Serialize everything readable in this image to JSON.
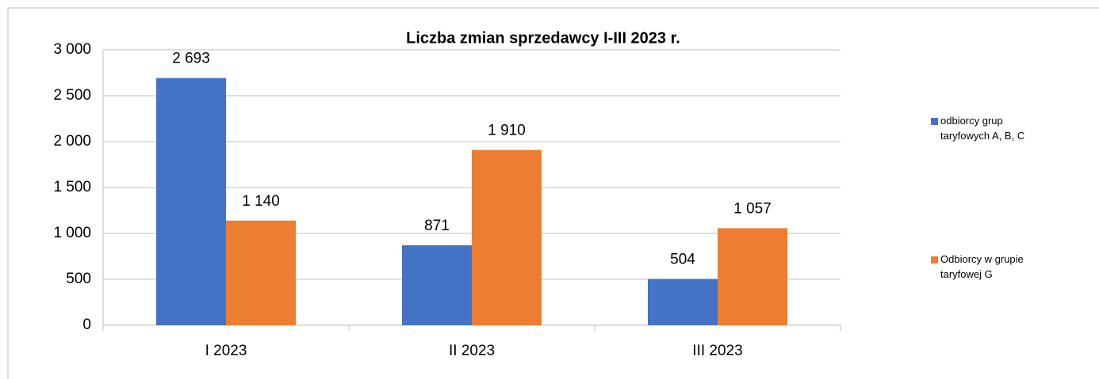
{
  "chart_data": {
    "type": "bar",
    "title": "Liczba zmian sprzedawcy I-III 2023 r.",
    "categories": [
      "I 2023",
      "II 2023",
      "III 2023"
    ],
    "series": [
      {
        "name": "odbiorcy grup taryfowych A, B, C",
        "color": "#4472c4",
        "values": [
          2693,
          871,
          504
        ],
        "value_labels": [
          "2 693",
          "871",
          "504"
        ]
      },
      {
        "name": "Odbiorcy w grupie taryfowej G",
        "color": "#ed7d31",
        "values": [
          1140,
          1910,
          1057
        ],
        "value_labels": [
          "1 140",
          "1 910",
          "1 057"
        ]
      }
    ],
    "ylim": [
      0,
      3000
    ],
    "yticks": [
      0,
      500,
      {
        "value": 1000,
        "label": "1 000"
      },
      {
        "value": 1500,
        "label": "1 500"
      },
      {
        "value": 2000,
        "label": "2 000"
      },
      {
        "value": 2500,
        "label": "2 500"
      },
      {
        "value": 3000,
        "label": "3 000"
      }
    ],
    "grid": true,
    "legend": "right"
  }
}
